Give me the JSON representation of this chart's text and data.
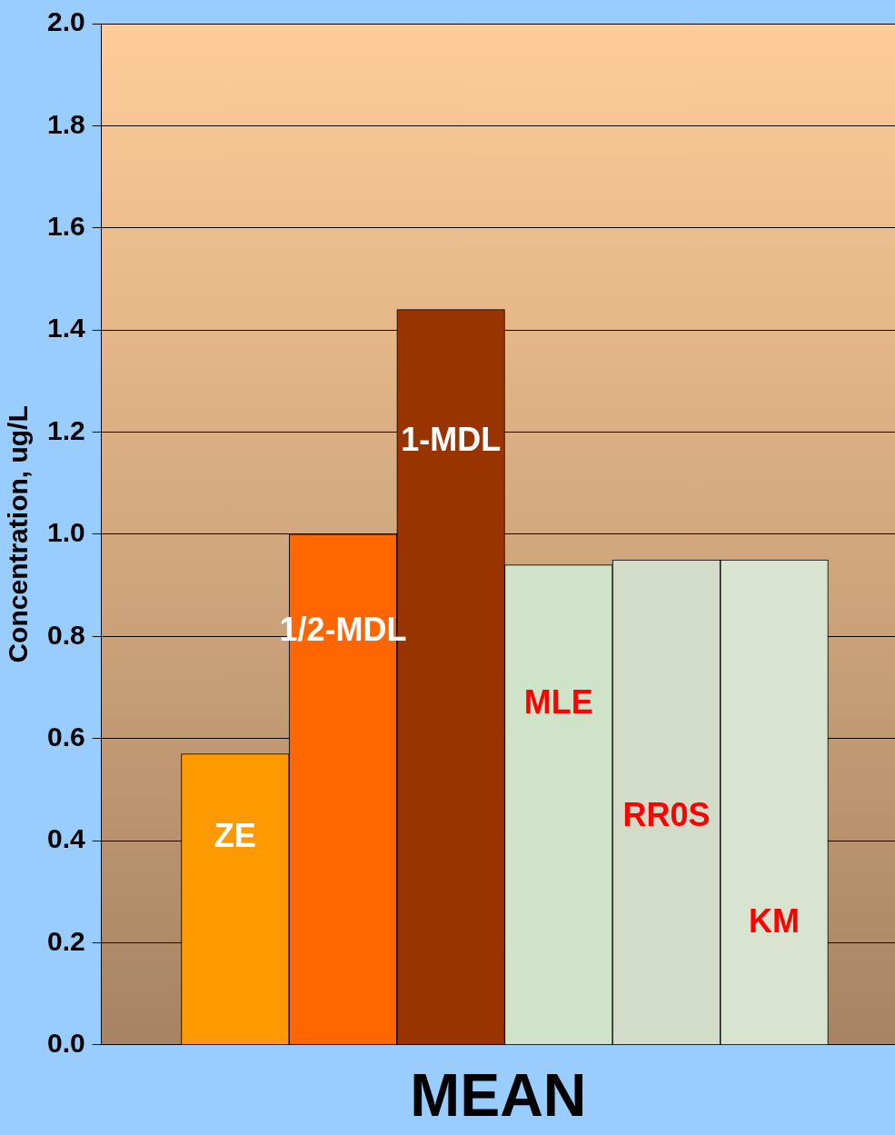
{
  "chart_data": {
    "type": "bar",
    "xlabel": "MEAN",
    "ylabel": "Concentration, ug/L",
    "categories": [
      "ZE",
      "1/2-MDL",
      "1-MDL",
      "MLE",
      "RR0S",
      "KM"
    ],
    "values": [
      0.57,
      1.0,
      1.44,
      0.94,
      0.95,
      0.95
    ],
    "colors": [
      "#ff9900",
      "#ff6600",
      "#993300",
      "#cfe3c8",
      "#d3dcc8",
      "#d8e4d0"
    ],
    "ylim": [
      0,
      2.0
    ],
    "yticks": [
      {
        "value": 0,
        "label": "0.0"
      },
      0.2,
      0.4,
      0.6,
      0.8,
      {
        "value": 1,
        "label": "1.0"
      },
      1.2,
      1.4,
      1.6,
      1.8,
      {
        "value": 2,
        "label": "2.0"
      }
    ],
    "grid": "y",
    "legend": false
  }
}
